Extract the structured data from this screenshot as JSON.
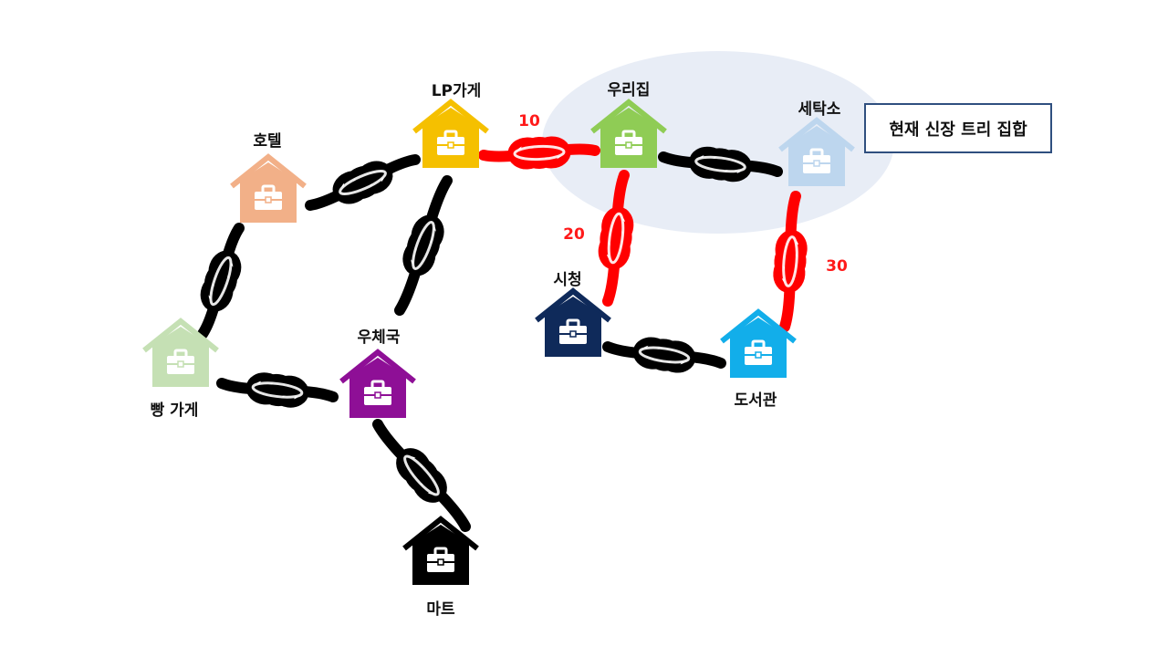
{
  "colors": {
    "tree_edge": "#ff0000",
    "normal_edge": "#000000",
    "weight_text": "#ff1a1a",
    "set_highlight": "#e8edf6",
    "legend_border": "#2f4f7f"
  },
  "legend": {
    "label": "현재 신장 트리 집합"
  },
  "nodes": [
    {
      "id": "lp",
      "label": "LP가게",
      "color": "#f5c000",
      "icon": "house-icon"
    },
    {
      "id": "hotel",
      "label": "호텔",
      "color": "#f2b088",
      "icon": "house-icon"
    },
    {
      "id": "bread",
      "label": "빵 가게",
      "color": "#c5e0b4",
      "icon": "house-icon"
    },
    {
      "id": "post",
      "label": "우체국",
      "color": "#8e0f96",
      "icon": "house-icon"
    },
    {
      "id": "mart",
      "label": "마트",
      "color": "#000000",
      "icon": "house-icon"
    },
    {
      "id": "home",
      "label": "우리집",
      "color": "#8fcc55",
      "icon": "house-icon"
    },
    {
      "id": "laundry",
      "label": "세탁소",
      "color": "#bdd6ee",
      "icon": "house-icon"
    },
    {
      "id": "city",
      "label": "시청",
      "color": "#0f2a5a",
      "icon": "house-icon"
    },
    {
      "id": "library",
      "label": "도서관",
      "color": "#12aeea",
      "icon": "house-icon"
    }
  ],
  "edges": [
    {
      "id": "lp-home",
      "from": "LP가게",
      "to": "우리집",
      "in_tree": true,
      "weight": "10"
    },
    {
      "id": "home-city",
      "from": "우리집",
      "to": "시청",
      "in_tree": true,
      "weight": "20"
    },
    {
      "id": "laundry-library",
      "from": "세탁소",
      "to": "도서관",
      "in_tree": true,
      "weight": "30"
    },
    {
      "id": "hotel-lp",
      "from": "호텔",
      "to": "LP가게",
      "in_tree": false,
      "weight": ""
    },
    {
      "id": "lp-post",
      "from": "LP가게",
      "to": "우체국",
      "in_tree": false,
      "weight": ""
    },
    {
      "id": "hotel-bread",
      "from": "호텔",
      "to": "빵 가게",
      "in_tree": false,
      "weight": ""
    },
    {
      "id": "bread-post",
      "from": "빵 가게",
      "to": "우체국",
      "in_tree": false,
      "weight": ""
    },
    {
      "id": "post-mart",
      "from": "우체국",
      "to": "마트",
      "in_tree": false,
      "weight": ""
    },
    {
      "id": "home-laundry",
      "from": "우리집",
      "to": "세탁소",
      "in_tree": false,
      "weight": ""
    },
    {
      "id": "city-library",
      "from": "시청",
      "to": "도서관",
      "in_tree": false,
      "weight": ""
    }
  ]
}
